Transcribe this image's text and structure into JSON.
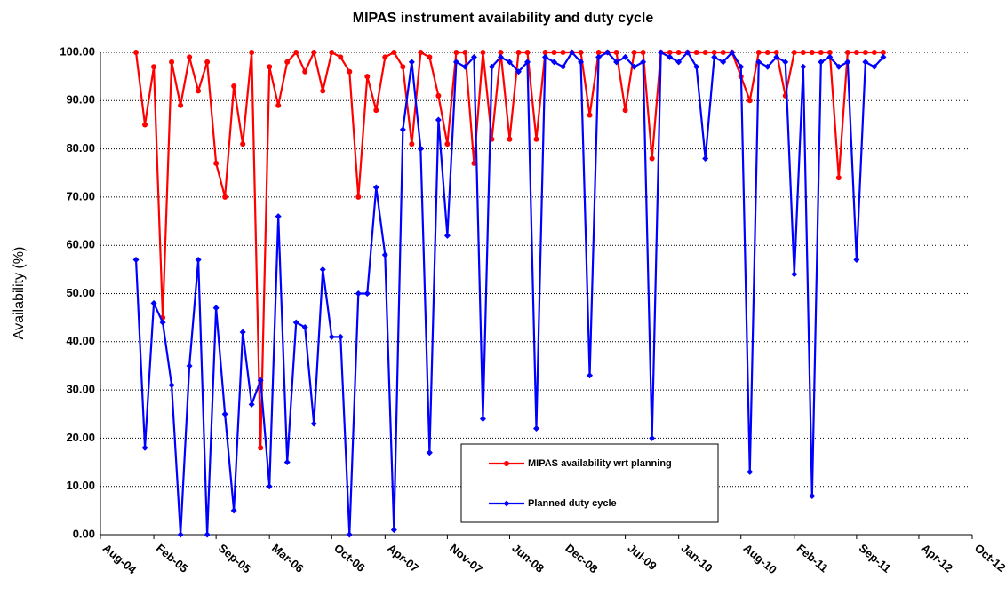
{
  "chart_data": {
    "type": "line",
    "title": "MIPAS instrument availability and duty cycle",
    "y_label": "Availability (%)",
    "x": [
      "2004-12",
      "2005-01",
      "2005-02",
      "2005-03",
      "2005-04",
      "2005-05",
      "2005-06",
      "2005-07",
      "2005-08",
      "2005-09",
      "2005-10",
      "2005-11",
      "2005-12",
      "2006-01",
      "2006-02",
      "2006-03",
      "2006-04",
      "2006-05",
      "2006-06",
      "2006-07",
      "2006-08",
      "2006-09",
      "2006-10",
      "2006-11",
      "2006-12",
      "2007-01",
      "2007-02",
      "2007-03",
      "2007-04",
      "2007-05",
      "2007-06",
      "2007-07",
      "2007-08",
      "2007-09",
      "2007-10",
      "2007-11",
      "2007-12",
      "2008-01",
      "2008-02",
      "2008-03",
      "2008-04",
      "2008-05",
      "2008-06",
      "2008-07",
      "2008-08",
      "2008-09",
      "2008-10",
      "2008-11",
      "2008-12",
      "2009-01",
      "2009-02",
      "2009-03",
      "2009-04",
      "2009-05",
      "2009-06",
      "2009-07",
      "2009-08",
      "2009-09",
      "2009-10",
      "2009-11",
      "2009-12",
      "2010-01",
      "2010-02",
      "2010-03",
      "2010-04",
      "2010-05",
      "2010-06",
      "2010-07",
      "2010-08",
      "2010-09",
      "2010-10",
      "2010-11",
      "2010-12",
      "2011-01",
      "2011-02",
      "2011-03",
      "2011-04",
      "2011-05",
      "2011-06",
      "2011-07",
      "2011-08",
      "2011-09",
      "2011-10",
      "2011-11",
      "2011-12"
    ],
    "series": [
      {
        "name": "MIPAS availability wrt planning",
        "color": "#ff0000",
        "marker": "circle",
        "values": [
          100,
          85,
          97,
          45,
          98,
          89,
          99,
          92,
          98,
          77,
          70,
          93,
          81,
          100,
          18,
          97,
          89,
          98,
          100,
          96,
          100,
          92,
          100,
          99,
          96,
          70,
          95,
          88,
          99,
          100,
          97,
          81,
          100,
          99,
          91,
          81,
          100,
          100,
          77,
          100,
          82,
          100,
          82,
          100,
          100,
          82,
          100,
          100,
          100,
          100,
          100,
          87,
          100,
          100,
          100,
          88,
          100,
          100,
          78,
          100,
          100,
          100,
          100,
          100,
          100,
          100,
          100,
          100,
          95,
          90,
          100,
          100,
          100,
          91,
          100,
          100,
          100,
          100,
          100,
          74,
          100,
          100,
          100,
          100,
          100
        ]
      },
      {
        "name": "Planned duty cycle",
        "color": "#0000ff",
        "marker": "diamond",
        "values": [
          57,
          18,
          48,
          44,
          31,
          0,
          35,
          57,
          0,
          47,
          25,
          5,
          42,
          27,
          32,
          10,
          66,
          15,
          44,
          43,
          23,
          55,
          41,
          41,
          0,
          50,
          50,
          72,
          58,
          1,
          84,
          98,
          80,
          17,
          86,
          62,
          98,
          97,
          99,
          24,
          97,
          99,
          98,
          96,
          98,
          22,
          99,
          98,
          97,
          100,
          98,
          33,
          99,
          100,
          98,
          99,
          97,
          98,
          20,
          100,
          99,
          98,
          100,
          97,
          78,
          99,
          98,
          100,
          97,
          13,
          98,
          97,
          99,
          98,
          54,
          97,
          8,
          98,
          99,
          97,
          98,
          57,
          98,
          97,
          99
        ]
      }
    ],
    "xlim": [
      "2004-08",
      "2012-10"
    ],
    "xticks": [
      {
        "value": "2004-08",
        "label": "Aug-04"
      },
      {
        "value": "2005-02",
        "label": "Feb-05"
      },
      {
        "value": "2005-09",
        "label": "Sep-05"
      },
      {
        "value": "2006-03",
        "label": "Mar-06"
      },
      {
        "value": "2006-10",
        "label": "Oct-06"
      },
      {
        "value": "2007-04",
        "label": "Apr-07"
      },
      {
        "value": "2007-11",
        "label": "Nov-07"
      },
      {
        "value": "2008-06",
        "label": "Jun-08"
      },
      {
        "value": "2008-12",
        "label": "Dec-08"
      },
      {
        "value": "2009-07",
        "label": "Jul-09"
      },
      {
        "value": "2010-01",
        "label": "Jan-10"
      },
      {
        "value": "2010-08",
        "label": "Aug-10"
      },
      {
        "value": "2011-02",
        "label": "Feb-11"
      },
      {
        "value": "2011-09",
        "label": "Sep-11"
      },
      {
        "value": "2012-04",
        "label": "Apr-12"
      },
      {
        "value": "2012-10",
        "label": "Oct-12"
      }
    ],
    "ylim": [
      0,
      100
    ],
    "yticks": [
      {
        "value": 0,
        "label": "0.00"
      },
      {
        "value": 10,
        "label": "10.00"
      },
      {
        "value": 20,
        "label": "20.00"
      },
      {
        "value": 30,
        "label": "30.00"
      },
      {
        "value": 40,
        "label": "40.00"
      },
      {
        "value": 50,
        "label": "50.00"
      },
      {
        "value": 60,
        "label": "60.00"
      },
      {
        "value": 70,
        "label": "70.00"
      },
      {
        "value": 80,
        "label": "80.00"
      },
      {
        "value": 90,
        "label": "90.00"
      },
      {
        "value": 100,
        "label": "100.00"
      }
    ],
    "grid": true
  }
}
